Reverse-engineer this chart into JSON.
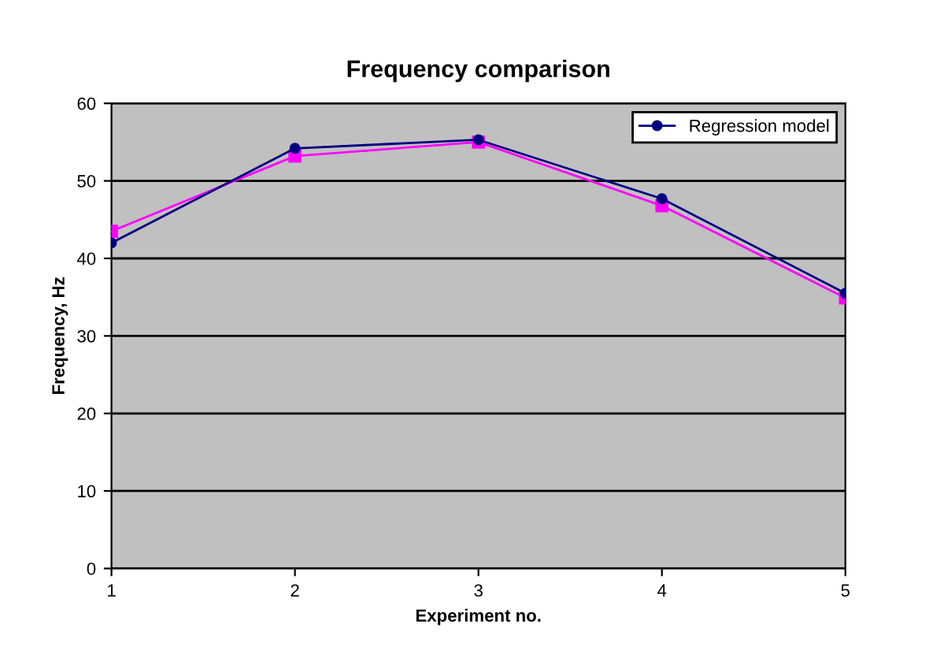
{
  "chart_data": {
    "type": "line",
    "title": "Frequency comparison",
    "xlabel": "Experiment no.",
    "ylabel": "Frequency, Hz",
    "x": [
      1,
      2,
      3,
      4,
      5
    ],
    "series": [
      {
        "name": "Regression model",
        "color": "#000080",
        "marker": "circle",
        "values": [
          42,
          54.2,
          55.3,
          47.7,
          35.5
        ]
      },
      {
        "color": "#ff00ff",
        "marker": "square",
        "values": [
          43.5,
          53.2,
          55.0,
          46.8,
          34.9
        ]
      }
    ],
    "xlim": [
      1,
      5
    ],
    "xticks": [
      1,
      2,
      3,
      4,
      5
    ],
    "ylim": [
      0,
      60
    ],
    "yticks": [
      0,
      10,
      20,
      30,
      40,
      50,
      60
    ],
    "grid": "y",
    "legend": "top right"
  }
}
